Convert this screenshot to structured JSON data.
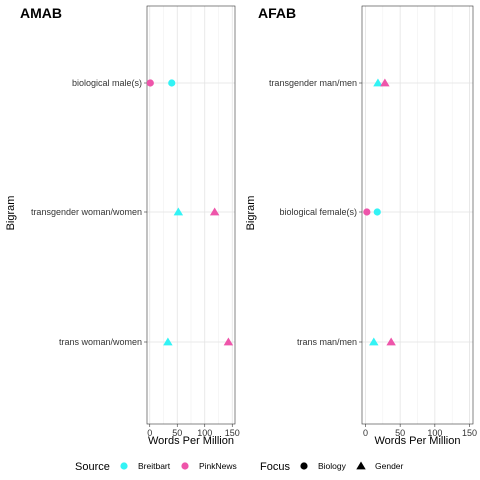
{
  "chart_data": [
    {
      "type": "scatter",
      "title": "AMAB",
      "xlabel": "Words Per Million",
      "ylabel": "Bigram",
      "xlim": [
        -5,
        155
      ],
      "xticks": [
        0,
        50,
        100,
        150
      ],
      "categories": [
        "biological male(s)",
        "transgender woman/women",
        "trans woman/women"
      ],
      "points": [
        {
          "category": "biological male(s)",
          "x": 1,
          "source": "PinkNews",
          "focus": "Biology"
        },
        {
          "category": "biological male(s)",
          "x": 40,
          "source": "Breitbart",
          "focus": "Biology"
        },
        {
          "category": "transgender woman/women",
          "x": 52,
          "source": "Breitbart",
          "focus": "Gender"
        },
        {
          "category": "transgender woman/women",
          "x": 118,
          "source": "PinkNews",
          "focus": "Gender"
        },
        {
          "category": "trans woman/women",
          "x": 33,
          "source": "Breitbart",
          "focus": "Gender"
        },
        {
          "category": "trans woman/women",
          "x": 143,
          "source": "PinkNews",
          "focus": "Gender"
        }
      ]
    },
    {
      "type": "scatter",
      "title": "AFAB",
      "xlabel": "Words Per Million",
      "ylabel": "Bigram",
      "xlim": [
        -5,
        155
      ],
      "xticks": [
        0,
        50,
        100,
        150
      ],
      "categories": [
        "transgender man/men",
        "biological female(s)",
        "trans man/men"
      ],
      "points": [
        {
          "category": "transgender man/men",
          "x": 18,
          "source": "Breitbart",
          "focus": "Gender"
        },
        {
          "category": "transgender man/men",
          "x": 28,
          "source": "PinkNews",
          "focus": "Gender"
        },
        {
          "category": "biological female(s)",
          "x": 2,
          "source": "PinkNews",
          "focus": "Biology"
        },
        {
          "category": "biological female(s)",
          "x": 17,
          "source": "Breitbart",
          "focus": "Biology"
        },
        {
          "category": "trans man/men",
          "x": 12,
          "source": "Breitbart",
          "focus": "Gender"
        },
        {
          "category": "trans man/men",
          "x": 37,
          "source": "PinkNews",
          "focus": "Gender"
        }
      ]
    }
  ],
  "legend": {
    "source_title": "Source",
    "source_items": [
      {
        "label": "Breitbart",
        "color": "#33f3f5"
      },
      {
        "label": "PinkNews",
        "color": "#ee55aa"
      }
    ],
    "focus_title": "Focus",
    "focus_items": [
      {
        "label": "Biology",
        "shape": "circle"
      },
      {
        "label": "Gender",
        "shape": "triangle"
      }
    ]
  }
}
